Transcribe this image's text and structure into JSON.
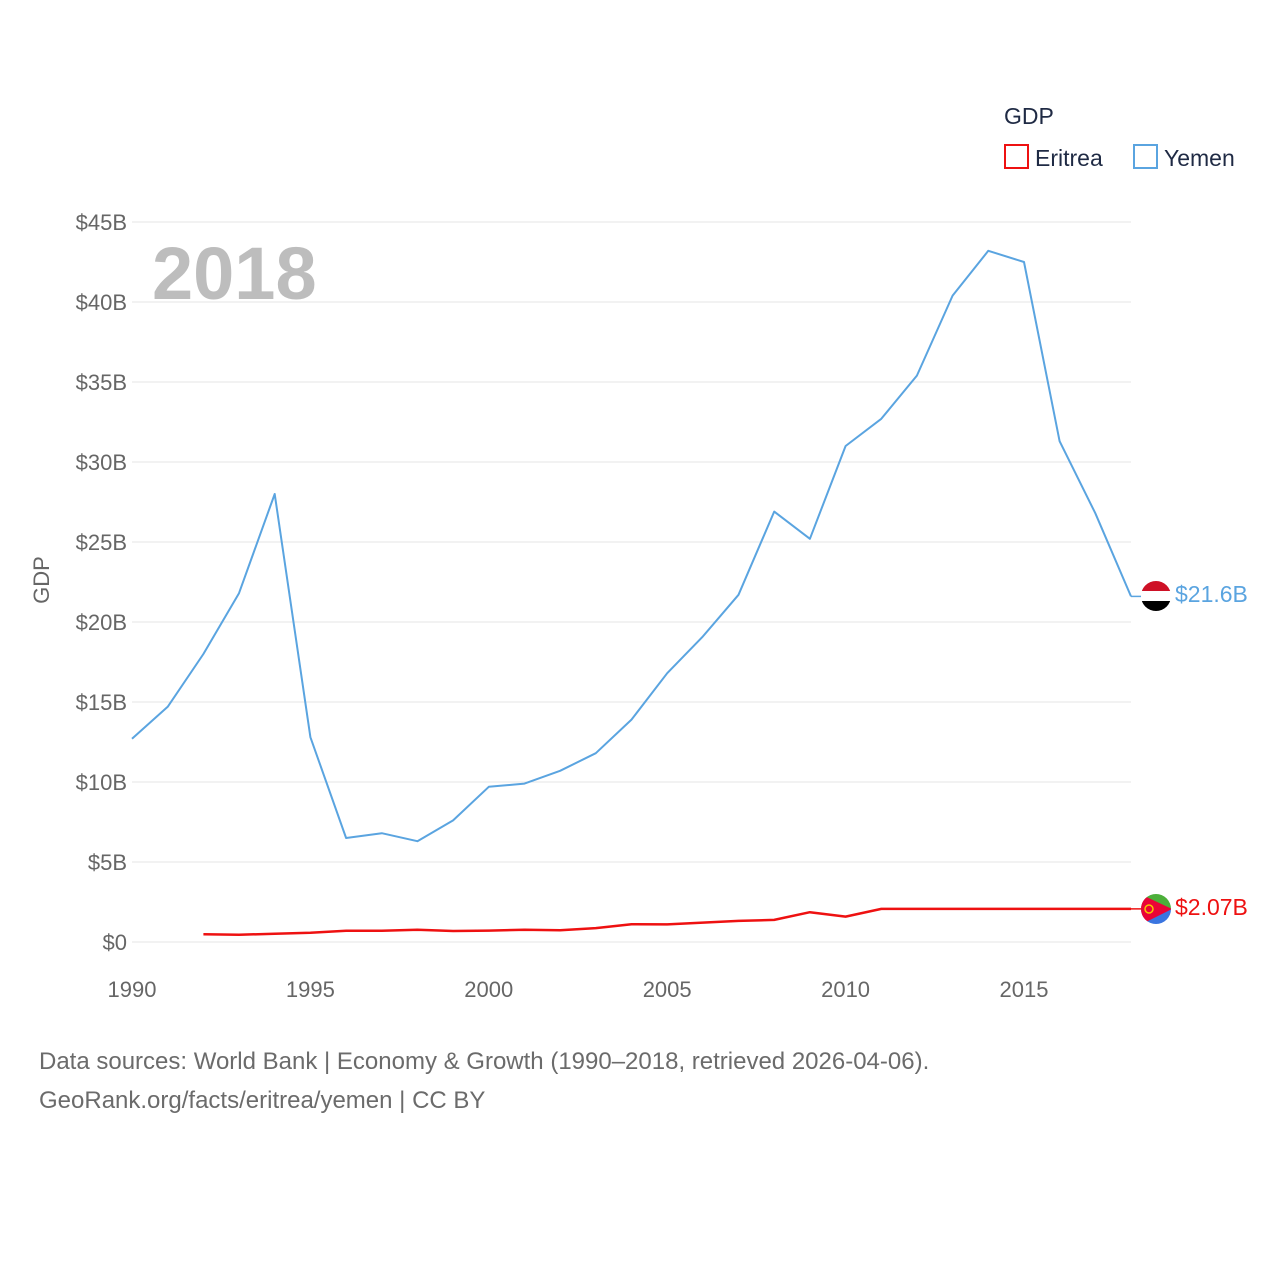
{
  "chart_data": {
    "type": "line",
    "title": "",
    "year_label": "2018",
    "ylabel": "GDP",
    "xlabel": "",
    "xlim": [
      1990,
      2018
    ],
    "ylim": [
      0,
      45
    ],
    "x_ticks": [
      "1990",
      "1995",
      "2000",
      "2005",
      "2010",
      "2015"
    ],
    "x_tick_values": [
      1990,
      1995,
      2000,
      2005,
      2010,
      2015
    ],
    "y_ticks": [
      "$0",
      "$5B",
      "$10B",
      "$15B",
      "$20B",
      "$25B",
      "$30B",
      "$35B",
      "$40B",
      "$45B"
    ],
    "y_tick_values": [
      0,
      5,
      10,
      15,
      20,
      25,
      30,
      35,
      40,
      45
    ],
    "units": "billion USD",
    "legend": {
      "title": "GDP",
      "position": "top-right"
    },
    "series": [
      {
        "name": "Eritrea",
        "color": "#ee1111",
        "end_label": "$2.07B",
        "flag": "eritrea-flag",
        "x": [
          1992,
          1993,
          1994,
          1995,
          1996,
          1997,
          1998,
          1999,
          2000,
          2001,
          2002,
          2003,
          2004,
          2005,
          2006,
          2007,
          2008,
          2009,
          2010,
          2011,
          2018
        ],
        "values": [
          0.48,
          0.45,
          0.52,
          0.58,
          0.7,
          0.7,
          0.77,
          0.69,
          0.71,
          0.76,
          0.73,
          0.87,
          1.11,
          1.1,
          1.21,
          1.32,
          1.38,
          1.86,
          1.59,
          2.07,
          2.07
        ]
      },
      {
        "name": "Yemen",
        "color": "#5aa4e0",
        "end_label": "$21.6B",
        "flag": "yemen-flag",
        "x": [
          1990,
          1991,
          1992,
          1993,
          1994,
          1995,
          1996,
          1997,
          1998,
          1999,
          2000,
          2001,
          2002,
          2003,
          2004,
          2005,
          2006,
          2007,
          2008,
          2009,
          2010,
          2011,
          2012,
          2013,
          2014,
          2015,
          2016,
          2017,
          2018
        ],
        "values": [
          12.7,
          14.7,
          18.0,
          21.8,
          28.0,
          12.8,
          6.5,
          6.8,
          6.3,
          7.6,
          9.7,
          9.9,
          10.7,
          11.8,
          13.9,
          16.8,
          19.1,
          21.7,
          26.9,
          25.2,
          31.0,
          32.7,
          35.4,
          40.4,
          43.2,
          42.5,
          31.3,
          26.8,
          21.6
        ]
      }
    ]
  },
  "footer": {
    "line1": "Data sources: World Bank | Economy & Growth (1990–2018, retrieved 2026-04-06).",
    "line2": "GeoRank.org/facts/eritrea/yemen | CC BY"
  }
}
